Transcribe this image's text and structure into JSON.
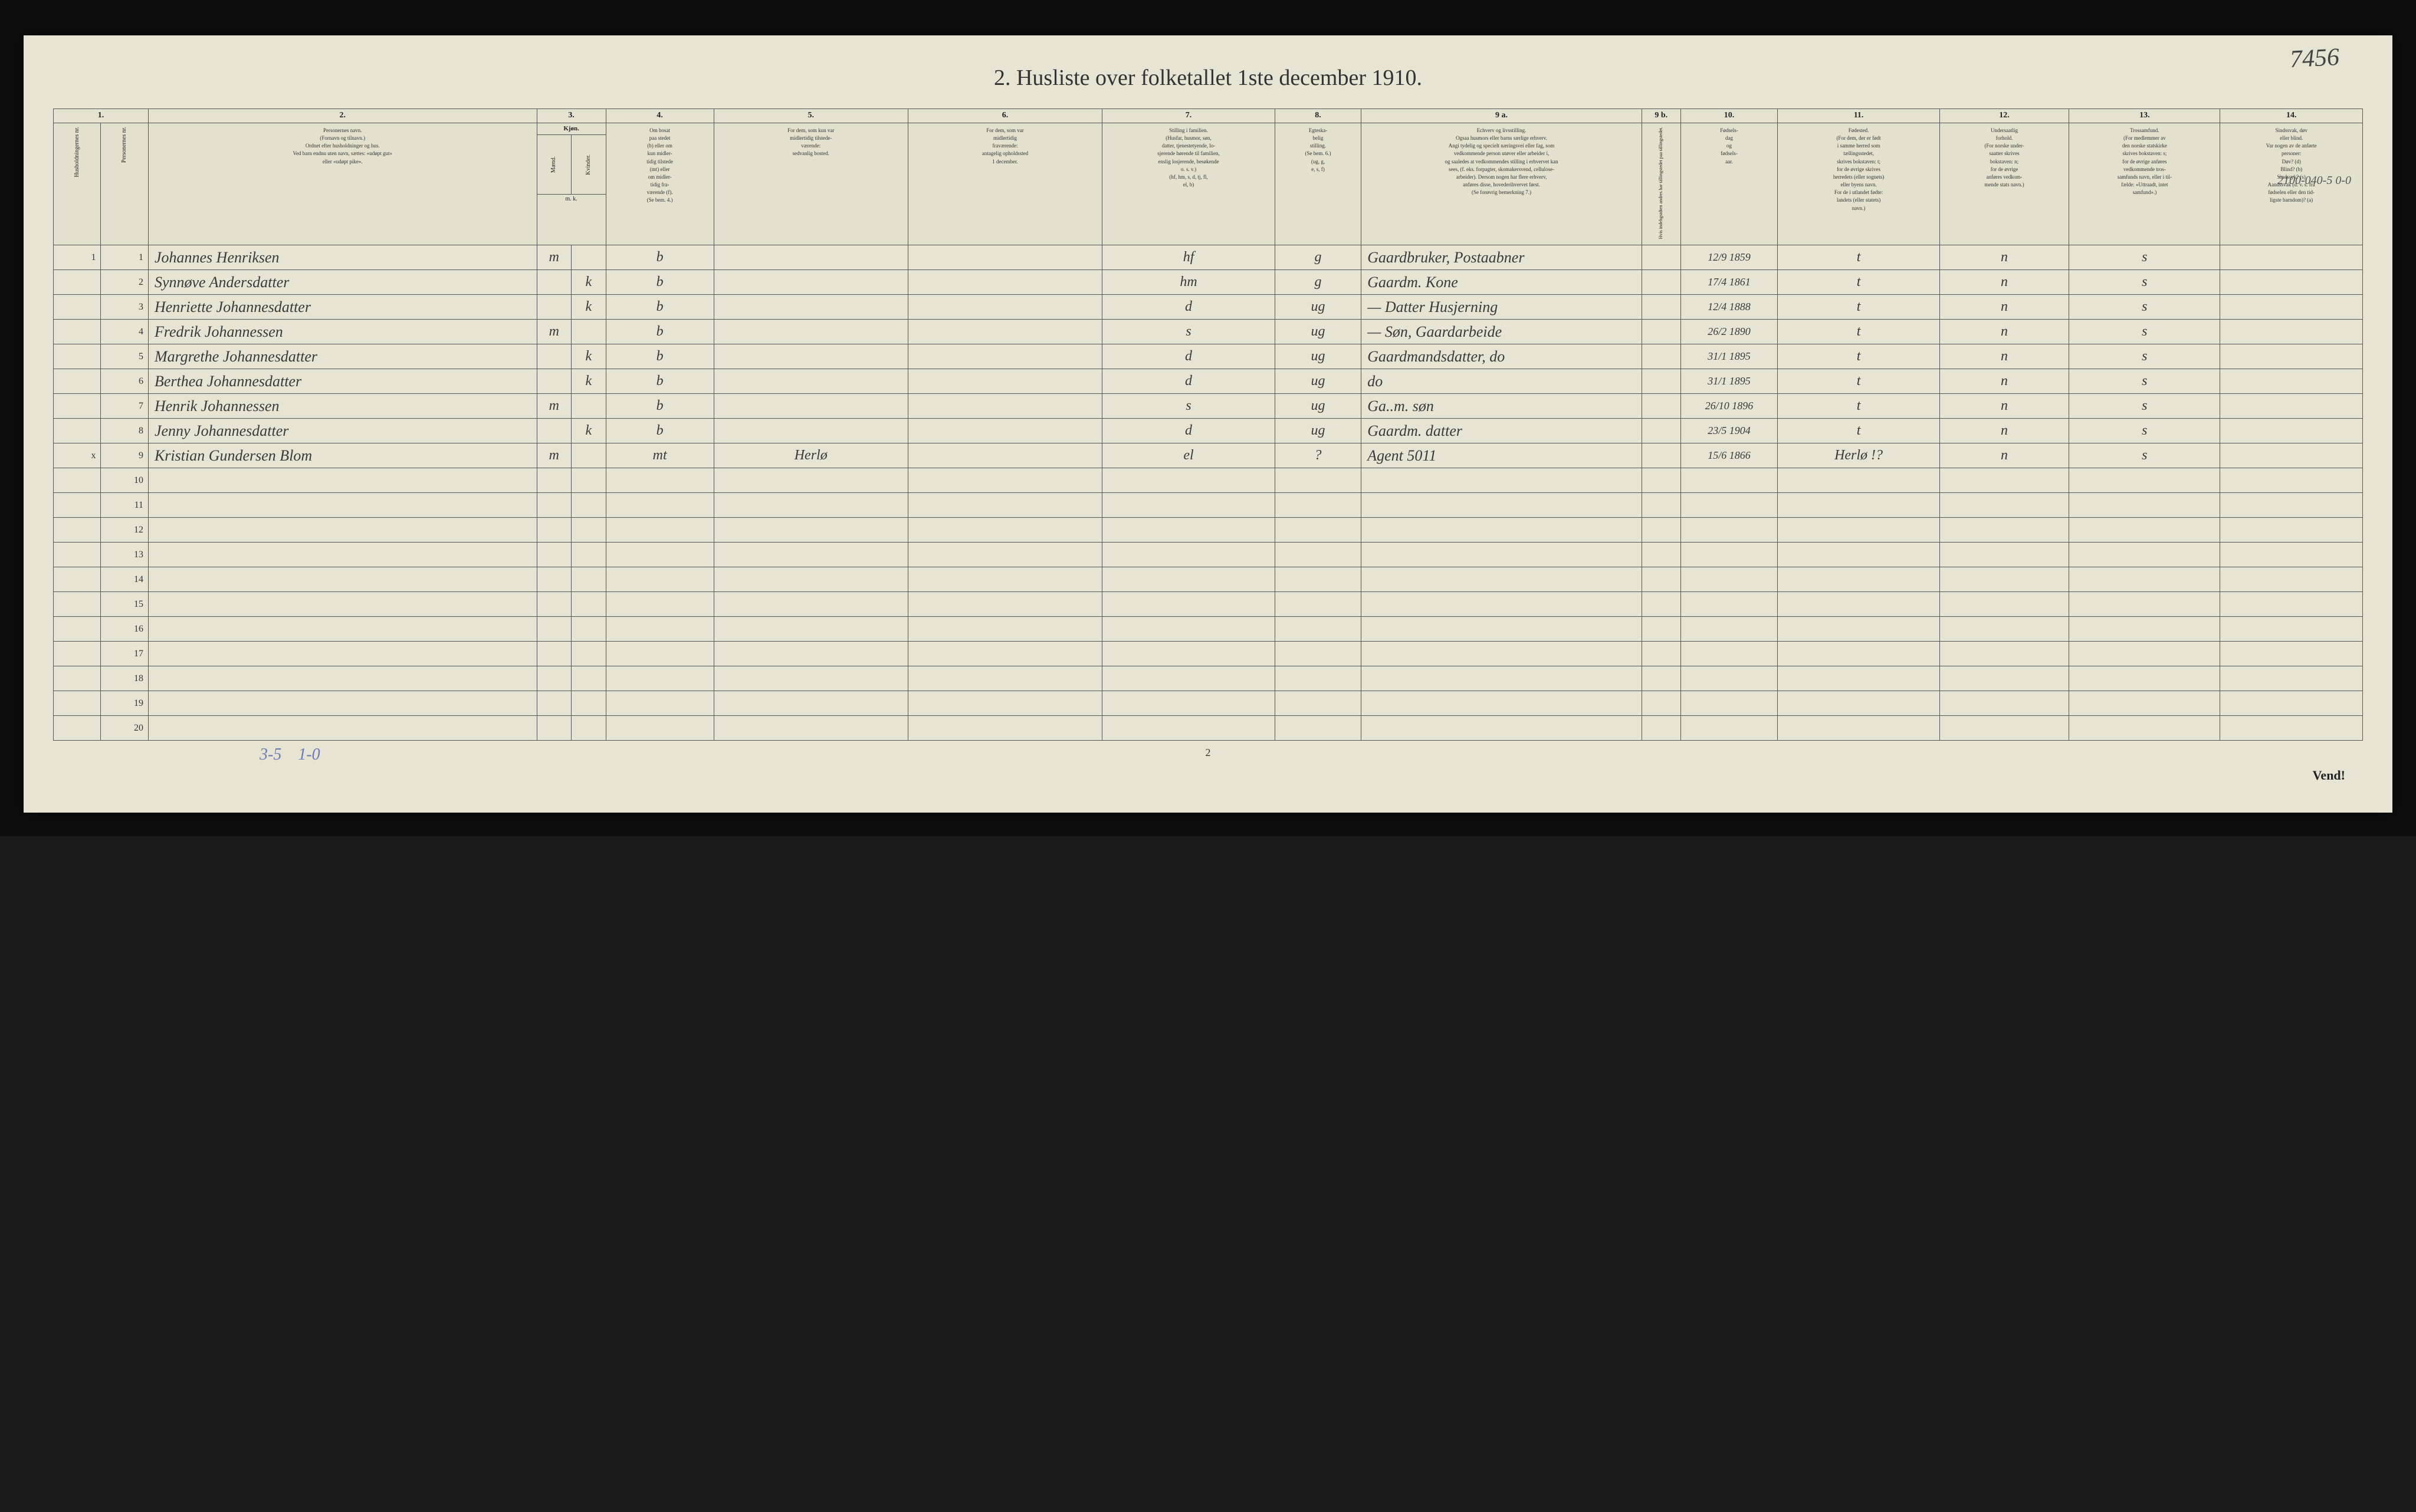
{
  "title": "2.  Husliste over folketallet 1ste december 1910.",
  "page_annotation": "7456",
  "hand_note": "2100-040-5\n0-0",
  "bottom_annotation_1": "3-5",
  "bottom_annotation_2": "1-0",
  "page_num_bottom": "2",
  "vend": "Vend!",
  "column_numbers": [
    "1.",
    "2.",
    "3.",
    "4.",
    "5.",
    "6.",
    "7.",
    "8.",
    "9 a.",
    "9 b.",
    "10.",
    "11.",
    "12.",
    "13.",
    "14."
  ],
  "headers": {
    "col1a": "Husholdningernes nr.",
    "col1b": "Personernes nr.",
    "col2": "Personernes navn.\n(Fornavn og tilnavn.)\nOrdnet efter husholdninger og hus.\nVed barn endnu uten navn, sættes: «udøpt gut»\neller «udøpt pike».",
    "col3": "Kjøn.",
    "col3a": "Mænd.",
    "col3b": "Kvinder.",
    "col4": "Om bosat\npaa stedet\n(b) eller om\nkun midler-\ntidig tilstede\n(mt) eller\nom midler-\ntidig fra-\nværende (f).\n(Se bem. 4.)",
    "col5": "For dem, som kun var\nmidlertidig tilstede-\nværende:\nsedvanlig bosted.",
    "col6": "For dem, som var\nmidlertidig\nfraværende:\nantagelig opholdssted\n1 december.",
    "col7": "Stilling i familien.\n(Husfar, husmor, søn,\ndatter, tjenestetyende, lo-\nsjerende hørende til familien,\nenslig losjerende, besøkende\no. s. v.)\n(hf, hm, s, d, tj, fl,\nel, b)",
    "col8": "Egteska-\nbelig\nstilling.\n(Se bem. 6.)\n(ug, g,\ne, s, f)",
    "col9a": "Echverv og livsstilling.\nOgsaa husmors eller barns særlige erhverv.\nAngi tydelig og specielt næringsvei eller fag, som\nvedkommende person utøver eller arbeider i,\nog saaledes at vedkommendes stilling i erhvervet kan\nsees, (f. eks. forpagter, skomakersvend, cellulose-\narbeider). Dersom nogen har flere erhverv,\nanføres disse, hovederihvervet først.\n(Se forøvrig bemerkning 7.)",
    "col9b": "Hvis indehgstdten andres\nhar tällingstedet\npaa tällingstedet.",
    "col10": "Fødsels-\ndag\nog\nfødsels-\naar.",
    "col11": "Fødested.\n(For dem, der er født\ni samme herred som\ntællingsstedet,\nskrives bokstaven: t;\nfor de øvrige skrives\nherredets (eller sognets)\neller byens navn.\nFor de i utlandet fødte:\nlandets (eller statets)\nnavn.)",
    "col12": "Undersaatlig\nforhold.\n(For norske under-\nsaatter skrives\nbokstaven: n;\nfor de øvrige\nanføres vedkom-\nmende stats navn.)",
    "col13": "Trossamfund.\n(For medlemmer av\nden norske statskirke\nskrives bokstaven: s;\nfor de øvrige anføres\nvedkommende tros-\nsamfunds navn, eller i til-\nfælde: «Uttraadt, intet\nsamfund».)",
    "col14": "Sindssvak, døv\neller blind.\nVar nogen av de anførte\npersoner:\nDøv?     (d)\nBlind?   (b)\nSindssyk? (s)\nAandssvak (d. v. s. fra\nfødselen eller den tid-\nligste barndom)? (a)",
    "mk": "m. k."
  },
  "rows": [
    {
      "hh": "1",
      "pn": "1",
      "name": "Johannes Henriksen",
      "m": "m",
      "k": "",
      "res": "b",
      "c5": "",
      "c6": "",
      "stilling": "hf",
      "egt": "g",
      "erhverv": "Gaardbruker, Postaabner",
      "fodsel": "12/9 1859",
      "fodested": "t",
      "under": "n",
      "tro": "s",
      "c14": ""
    },
    {
      "hh": "",
      "pn": "2",
      "name": "Synnøve Andersdatter",
      "m": "",
      "k": "k",
      "res": "b",
      "c5": "",
      "c6": "",
      "stilling": "hm",
      "egt": "g",
      "erhverv": "Gaardm. Kone",
      "fodsel": "17/4 1861",
      "fodested": "t",
      "under": "n",
      "tro": "s",
      "c14": ""
    },
    {
      "hh": "",
      "pn": "3",
      "name": "Henriette Johannesdatter",
      "m": "",
      "k": "k",
      "res": "b",
      "c5": "",
      "c6": "",
      "stilling": "d",
      "egt": "ug",
      "erhverv": "—   Datter Husjerning",
      "fodsel": "12/4 1888",
      "fodested": "t",
      "under": "n",
      "tro": "s",
      "c14": ""
    },
    {
      "hh": "",
      "pn": "4",
      "name": "Fredrik Johannessen",
      "m": "m",
      "k": "",
      "res": "b",
      "c5": "",
      "c6": "",
      "stilling": "s",
      "egt": "ug",
      "erhverv": "—   Søn, Gaardarbeide",
      "fodsel": "26/2 1890",
      "fodested": "t",
      "under": "n",
      "tro": "s",
      "c14": ""
    },
    {
      "hh": "",
      "pn": "5",
      "name": "Margrethe Johannesdatter",
      "m": "",
      "k": "k",
      "res": "b",
      "c5": "",
      "c6": "",
      "stilling": "d",
      "egt": "ug",
      "erhverv": "Gaardmandsdatter, do",
      "fodsel": "31/1 1895",
      "fodested": "t",
      "under": "n",
      "tro": "s",
      "c14": ""
    },
    {
      "hh": "",
      "pn": "6",
      "name": "Berthea Johannesdatter",
      "m": "",
      "k": "k",
      "res": "b",
      "c5": "",
      "c6": "",
      "stilling": "d",
      "egt": "ug",
      "erhverv": "do",
      "fodsel": "31/1 1895",
      "fodested": "t",
      "under": "n",
      "tro": "s",
      "c14": ""
    },
    {
      "hh": "",
      "pn": "7",
      "name": "Henrik Johannessen",
      "m": "m",
      "k": "",
      "res": "b",
      "c5": "",
      "c6": "",
      "stilling": "s",
      "egt": "ug",
      "erhverv": "Ga..m. søn",
      "fodsel": "26/10 1896",
      "fodested": "t",
      "under": "n",
      "tro": "s",
      "c14": ""
    },
    {
      "hh": "",
      "pn": "8",
      "name": "Jenny Johannesdatter",
      "m": "",
      "k": "k",
      "res": "b",
      "c5": "",
      "c6": "",
      "stilling": "d",
      "egt": "ug",
      "erhverv": "Gaardm. datter",
      "fodsel": "23/5 1904",
      "fodested": "t",
      "under": "n",
      "tro": "s",
      "c14": ""
    },
    {
      "hh": "x",
      "pn": "9",
      "name": "Kristian Gundersen Blom",
      "m": "m",
      "k": "",
      "res": "mt",
      "c5": "Herlø",
      "c6": "",
      "stilling": "el",
      "egt": "?",
      "erhverv": "Agent   5011",
      "fodsel": "15/6 1866",
      "fodested": "Herlø !?",
      "under": "n",
      "tro": "s",
      "c14": ""
    }
  ],
  "empty_rows": [
    10,
    11,
    12,
    13,
    14,
    15,
    16,
    17,
    18,
    19,
    20
  ],
  "colors": {
    "paper": "#e8e4d4",
    "ink": "#333333",
    "border": "#555555",
    "handwriting": "#3a3a3a",
    "blue_pencil": "#6a7bb5",
    "background": "#1a1a1a"
  },
  "col_widths_pct": [
    2.5,
    2.5,
    18,
    1.8,
    1.8,
    5,
    9,
    9,
    8,
    4.5,
    13,
    2,
    4.5,
    7.5,
    6,
    7,
    7
  ]
}
